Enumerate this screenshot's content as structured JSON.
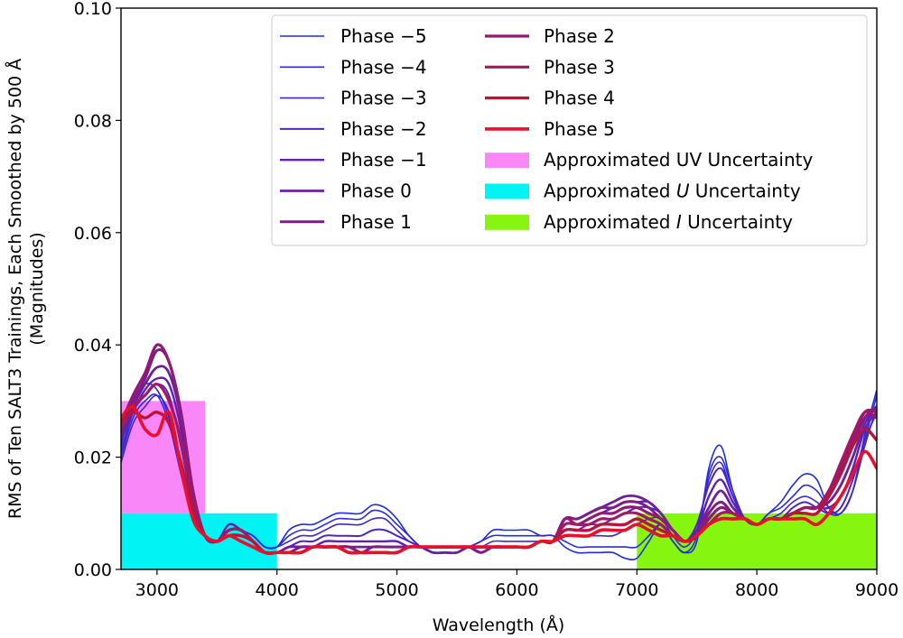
{
  "chart_data": {
    "type": "line",
    "title": "",
    "xlabel": "Wavelength (Å)",
    "ylabel_line1": "RMS of Ten SALT3 Trainings, Each Smoothed by 500 Å",
    "ylabel_line2": "(Magnitudes)",
    "xlim": [
      2700,
      9000
    ],
    "ylim": [
      0.0,
      0.1
    ],
    "xticks": [
      3000,
      4000,
      5000,
      6000,
      7000,
      8000,
      9000
    ],
    "xtick_labels": [
      "3000",
      "4000",
      "5000",
      "6000",
      "7000",
      "8000",
      "9000"
    ],
    "yticks": [
      0.0,
      0.02,
      0.04,
      0.06,
      0.08,
      0.1
    ],
    "ytick_labels": [
      "0.00",
      "0.02",
      "0.04",
      "0.06",
      "0.08",
      "0.10"
    ],
    "grid": false,
    "legend_position": "upper-right",
    "x": [
      2700,
      2800,
      2900,
      3000,
      3100,
      3200,
      3300,
      3400,
      3500,
      3600,
      3700,
      3800,
      3900,
      4000,
      4100,
      4200,
      4300,
      4400,
      4500,
      4600,
      4700,
      4800,
      4900,
      5000,
      5100,
      5200,
      5300,
      5400,
      5500,
      5600,
      5700,
      5800,
      5900,
      6000,
      6100,
      6200,
      6300,
      6400,
      6500,
      6600,
      6700,
      6800,
      6900,
      7000,
      7100,
      7200,
      7300,
      7400,
      7500,
      7600,
      7700,
      7800,
      7900,
      8000,
      8100,
      8200,
      8300,
      8400,
      8500,
      8600,
      8700,
      8800,
      8900,
      9000
    ],
    "series": [
      {
        "name": "Phase −5",
        "color": "#1f2be0",
        "width": 1.6,
        "values": [
          0.022,
          0.03,
          0.033,
          0.032,
          0.027,
          0.018,
          0.01,
          0.006,
          0.005,
          0.008,
          0.007,
          0.006,
          0.004,
          0.004,
          0.007,
          0.008,
          0.008,
          0.009,
          0.01,
          0.01,
          0.01,
          0.0115,
          0.011,
          0.009,
          0.006,
          0.004,
          0.003,
          0.003,
          0.003,
          0.004,
          0.005,
          0.007,
          0.007,
          0.007,
          0.007,
          0.006,
          0.006,
          0.004,
          0.003,
          0.003,
          0.003,
          0.003,
          0.002,
          0.002,
          0.005,
          0.008,
          0.005,
          0.003,
          0.005,
          0.018,
          0.022,
          0.014,
          0.009,
          0.008,
          0.01,
          0.012,
          0.015,
          0.017,
          0.016,
          0.011,
          0.01,
          0.014,
          0.024,
          0.032
        ]
      },
      {
        "name": "Phase −4",
        "color": "#2a2cdc",
        "width": 1.6,
        "values": [
          0.02,
          0.027,
          0.03,
          0.031,
          0.026,
          0.017,
          0.009,
          0.006,
          0.005,
          0.008,
          0.007,
          0.006,
          0.004,
          0.004,
          0.006,
          0.007,
          0.007,
          0.008,
          0.009,
          0.009,
          0.009,
          0.0105,
          0.01,
          0.008,
          0.006,
          0.004,
          0.003,
          0.003,
          0.003,
          0.004,
          0.005,
          0.006,
          0.006,
          0.006,
          0.006,
          0.006,
          0.006,
          0.005,
          0.004,
          0.004,
          0.004,
          0.004,
          0.004,
          0.004,
          0.006,
          0.008,
          0.005,
          0.003,
          0.006,
          0.017,
          0.02,
          0.014,
          0.009,
          0.008,
          0.01,
          0.011,
          0.013,
          0.015,
          0.014,
          0.011,
          0.01,
          0.014,
          0.023,
          0.031
        ]
      },
      {
        "name": "Phase −3",
        "color": "#3d28d2",
        "width": 1.6,
        "values": [
          0.019,
          0.026,
          0.029,
          0.031,
          0.028,
          0.019,
          0.01,
          0.006,
          0.005,
          0.008,
          0.007,
          0.006,
          0.004,
          0.004,
          0.005,
          0.006,
          0.006,
          0.007,
          0.008,
          0.008,
          0.008,
          0.009,
          0.009,
          0.007,
          0.005,
          0.004,
          0.003,
          0.003,
          0.003,
          0.004,
          0.004,
          0.005,
          0.005,
          0.005,
          0.005,
          0.005,
          0.005,
          0.006,
          0.006,
          0.006,
          0.006,
          0.006,
          0.007,
          0.008,
          0.009,
          0.009,
          0.006,
          0.004,
          0.007,
          0.016,
          0.019,
          0.013,
          0.009,
          0.008,
          0.009,
          0.01,
          0.012,
          0.013,
          0.012,
          0.01,
          0.01,
          0.014,
          0.022,
          0.029
        ]
      },
      {
        "name": "Phase −2",
        "color": "#4d25c4",
        "width": 2.0,
        "values": [
          0.021,
          0.028,
          0.031,
          0.033,
          0.031,
          0.022,
          0.011,
          0.006,
          0.005,
          0.008,
          0.007,
          0.005,
          0.003,
          0.003,
          0.004,
          0.005,
          0.005,
          0.006,
          0.006,
          0.006,
          0.006,
          0.007,
          0.007,
          0.006,
          0.005,
          0.004,
          0.003,
          0.003,
          0.003,
          0.004,
          0.004,
          0.004,
          0.004,
          0.004,
          0.004,
          0.005,
          0.005,
          0.007,
          0.007,
          0.008,
          0.008,
          0.009,
          0.01,
          0.011,
          0.011,
          0.01,
          0.007,
          0.005,
          0.008,
          0.015,
          0.018,
          0.013,
          0.009,
          0.008,
          0.009,
          0.009,
          0.011,
          0.012,
          0.011,
          0.01,
          0.011,
          0.016,
          0.023,
          0.028
        ]
      },
      {
        "name": "Phase −1",
        "color": "#5e20b2",
        "width": 2.4,
        "values": [
          0.023,
          0.028,
          0.032,
          0.034,
          0.033,
          0.025,
          0.012,
          0.006,
          0.005,
          0.008,
          0.007,
          0.005,
          0.003,
          0.003,
          0.004,
          0.004,
          0.004,
          0.005,
          0.005,
          0.005,
          0.005,
          0.005,
          0.005,
          0.005,
          0.004,
          0.004,
          0.003,
          0.003,
          0.003,
          0.004,
          0.003,
          0.004,
          0.004,
          0.004,
          0.004,
          0.005,
          0.005,
          0.008,
          0.008,
          0.009,
          0.01,
          0.011,
          0.012,
          0.012,
          0.012,
          0.01,
          0.007,
          0.005,
          0.007,
          0.013,
          0.016,
          0.012,
          0.009,
          0.008,
          0.009,
          0.009,
          0.01,
          0.011,
          0.011,
          0.011,
          0.013,
          0.018,
          0.025,
          0.028
        ]
      },
      {
        "name": "Phase 0",
        "color": "#6d1f9e",
        "width": 2.8,
        "values": [
          0.024,
          0.029,
          0.033,
          0.036,
          0.035,
          0.027,
          0.013,
          0.006,
          0.005,
          0.007,
          0.007,
          0.005,
          0.003,
          0.003,
          0.004,
          0.004,
          0.004,
          0.004,
          0.004,
          0.004,
          0.004,
          0.004,
          0.004,
          0.004,
          0.004,
          0.004,
          0.003,
          0.003,
          0.003,
          0.004,
          0.003,
          0.004,
          0.004,
          0.004,
          0.004,
          0.005,
          0.005,
          0.009,
          0.009,
          0.01,
          0.011,
          0.012,
          0.013,
          0.013,
          0.012,
          0.01,
          0.007,
          0.005,
          0.007,
          0.011,
          0.014,
          0.011,
          0.009,
          0.008,
          0.009,
          0.009,
          0.01,
          0.011,
          0.011,
          0.012,
          0.015,
          0.02,
          0.026,
          0.029
        ]
      },
      {
        "name": "Phase 1",
        "color": "#7e1c8a",
        "width": 3.0,
        "values": [
          0.025,
          0.03,
          0.034,
          0.039,
          0.037,
          0.028,
          0.014,
          0.006,
          0.005,
          0.007,
          0.007,
          0.005,
          0.003,
          0.003,
          0.003,
          0.004,
          0.004,
          0.004,
          0.004,
          0.004,
          0.003,
          0.004,
          0.004,
          0.004,
          0.004,
          0.004,
          0.004,
          0.004,
          0.004,
          0.004,
          0.003,
          0.004,
          0.004,
          0.004,
          0.004,
          0.005,
          0.005,
          0.009,
          0.009,
          0.01,
          0.011,
          0.011,
          0.012,
          0.012,
          0.011,
          0.009,
          0.007,
          0.005,
          0.006,
          0.01,
          0.012,
          0.01,
          0.009,
          0.008,
          0.009,
          0.009,
          0.01,
          0.011,
          0.011,
          0.013,
          0.017,
          0.022,
          0.027,
          0.029
        ]
      },
      {
        "name": "Phase 2",
        "color": "#901a76",
        "width": 3.2,
        "values": [
          0.026,
          0.031,
          0.035,
          0.04,
          0.037,
          0.028,
          0.014,
          0.006,
          0.005,
          0.007,
          0.007,
          0.005,
          0.003,
          0.003,
          0.003,
          0.003,
          0.004,
          0.004,
          0.004,
          0.004,
          0.003,
          0.003,
          0.003,
          0.003,
          0.004,
          0.004,
          0.004,
          0.004,
          0.004,
          0.004,
          0.004,
          0.004,
          0.004,
          0.004,
          0.004,
          0.005,
          0.005,
          0.009,
          0.008,
          0.009,
          0.01,
          0.01,
          0.011,
          0.011,
          0.01,
          0.009,
          0.007,
          0.005,
          0.006,
          0.009,
          0.011,
          0.01,
          0.009,
          0.008,
          0.009,
          0.009,
          0.01,
          0.011,
          0.011,
          0.014,
          0.018,
          0.023,
          0.028,
          0.028
        ]
      },
      {
        "name": "Phase 3",
        "color": "#a21862",
        "width": 3.2,
        "values": [
          0.025,
          0.029,
          0.031,
          0.033,
          0.03,
          0.023,
          0.012,
          0.006,
          0.005,
          0.007,
          0.007,
          0.005,
          0.003,
          0.003,
          0.003,
          0.003,
          0.004,
          0.004,
          0.004,
          0.003,
          0.003,
          0.003,
          0.003,
          0.003,
          0.004,
          0.004,
          0.004,
          0.004,
          0.004,
          0.004,
          0.004,
          0.004,
          0.004,
          0.004,
          0.004,
          0.005,
          0.005,
          0.008,
          0.008,
          0.008,
          0.009,
          0.009,
          0.01,
          0.01,
          0.009,
          0.008,
          0.006,
          0.005,
          0.006,
          0.008,
          0.01,
          0.01,
          0.009,
          0.008,
          0.009,
          0.009,
          0.01,
          0.011,
          0.011,
          0.014,
          0.019,
          0.024,
          0.028,
          0.027
        ]
      },
      {
        "name": "Phase 4",
        "color": "#b8153c",
        "width": 3.4,
        "values": [
          0.026,
          0.028,
          0.027,
          0.028,
          0.026,
          0.019,
          0.01,
          0.006,
          0.005,
          0.006,
          0.006,
          0.005,
          0.003,
          0.003,
          0.003,
          0.003,
          0.004,
          0.004,
          0.004,
          0.003,
          0.003,
          0.003,
          0.003,
          0.003,
          0.004,
          0.004,
          0.004,
          0.004,
          0.004,
          0.004,
          0.004,
          0.004,
          0.004,
          0.004,
          0.004,
          0.005,
          0.005,
          0.007,
          0.007,
          0.007,
          0.008,
          0.008,
          0.008,
          0.009,
          0.008,
          0.007,
          0.006,
          0.005,
          0.006,
          0.008,
          0.009,
          0.009,
          0.009,
          0.008,
          0.009,
          0.009,
          0.01,
          0.01,
          0.01,
          0.013,
          0.017,
          0.022,
          0.025,
          0.023
        ]
      },
      {
        "name": "Phase 5",
        "color": "#e8102a",
        "width": 3.6,
        "values": [
          0.027,
          0.029,
          0.025,
          0.024,
          0.028,
          0.018,
          0.009,
          0.006,
          0.005,
          0.006,
          0.005,
          0.004,
          0.003,
          0.003,
          0.003,
          0.003,
          0.004,
          0.004,
          0.004,
          0.003,
          0.003,
          0.003,
          0.003,
          0.003,
          0.004,
          0.004,
          0.004,
          0.004,
          0.004,
          0.004,
          0.004,
          0.004,
          0.004,
          0.004,
          0.004,
          0.005,
          0.005,
          0.006,
          0.006,
          0.006,
          0.007,
          0.007,
          0.007,
          0.008,
          0.007,
          0.006,
          0.006,
          0.005,
          0.006,
          0.008,
          0.009,
          0.009,
          0.009,
          0.008,
          0.009,
          0.009,
          0.009,
          0.009,
          0.008,
          0.01,
          0.013,
          0.017,
          0.021,
          0.018
        ]
      }
    ],
    "bands": [
      {
        "name": "Approximated UV Uncertainty",
        "label_plain": "Approximated UV Uncertainty",
        "color": "#fa87f7",
        "x_start": 2700,
        "x_end": 3400,
        "y_start": 0.01,
        "y_end": 0.03
      },
      {
        "name": "Approximated U Uncertainty",
        "label_pre": "Approximated ",
        "label_italic": "U",
        "label_post": " Uncertainty",
        "color": "#00f4f4",
        "x_start": 2700,
        "x_end": 4000,
        "y_start": 0.0,
        "y_end": 0.01
      },
      {
        "name": "Approximated I Uncertainty",
        "label_pre": "Approximated ",
        "label_italic": "I",
        "label_post": " Uncertainty",
        "color": "#86f510",
        "x_start": 7000,
        "x_end": 9000,
        "y_start": 0.0,
        "y_end": 0.01
      }
    ]
  }
}
